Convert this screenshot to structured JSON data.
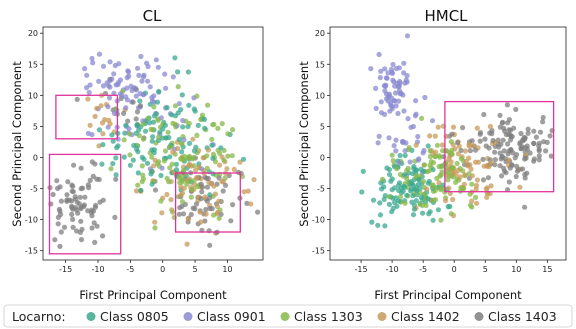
{
  "legend": {
    "label": "Locarno:",
    "entries": [
      {
        "name": "Class 0805",
        "color": "#3aa88f"
      },
      {
        "name": "Class 0901",
        "color": "#8a8ad0"
      },
      {
        "name": "Class 1303",
        "color": "#86b84a"
      },
      {
        "name": "Class 1402",
        "color": "#c79a5a"
      },
      {
        "name": "Class 1403",
        "color": "#7f7f7f"
      }
    ]
  },
  "highlight_color": "#e0349c",
  "chart_data": [
    {
      "type": "scatter",
      "title": "CL",
      "xlabel": "First Principal Component",
      "ylabel": "Second Principal Component",
      "xlim": [
        -18.5,
        15.5
      ],
      "ylim": [
        -16.5,
        21
      ],
      "xticks": [
        -15,
        -10,
        -5,
        0,
        5,
        10
      ],
      "yticks": [
        -15,
        -10,
        -5,
        0,
        5,
        10,
        15,
        20
      ],
      "grid": false,
      "series": [
        {
          "name": "Class 0805",
          "clusters": [
            {
              "cx": 0,
              "cy": 3,
              "sx": 4.5,
              "sy": 4.5,
              "n": 110
            }
          ]
        },
        {
          "name": "Class 0901",
          "clusters": [
            {
              "cx": -6,
              "cy": 12,
              "sx": 3.5,
              "sy": 3.5,
              "n": 70
            },
            {
              "cx": -1,
              "cy": 7,
              "sx": 4,
              "sy": 4,
              "n": 30
            }
          ]
        },
        {
          "name": "Class 1303",
          "clusters": [
            {
              "cx": 3,
              "cy": 0,
              "sx": 5,
              "sy": 4.5,
              "n": 120
            }
          ]
        },
        {
          "name": "Class 1402",
          "clusters": [
            {
              "cx": 5,
              "cy": -4,
              "sx": 4,
              "sy": 3.5,
              "n": 80
            },
            {
              "cx": -9,
              "cy": 6,
              "sx": 1.8,
              "sy": 2,
              "n": 15
            }
          ]
        },
        {
          "name": "Class 1403",
          "clusters": [
            {
              "cx": -13,
              "cy": -7,
              "sx": 2.8,
              "sy": 3.2,
              "n": 80
            },
            {
              "cx": 6,
              "cy": -7,
              "sx": 3,
              "sy": 2.8,
              "n": 60
            },
            {
              "cx": -5,
              "cy": 8,
              "sx": 3,
              "sy": 3,
              "n": 15
            }
          ]
        }
      ],
      "boxes": [
        {
          "x0": -16.5,
          "y0": 3,
          "x1": -7,
          "y1": 10
        },
        {
          "x0": -17.5,
          "y0": -15.5,
          "x1": -6.5,
          "y1": 0.5
        },
        {
          "x0": 2,
          "y0": -12,
          "x1": 12,
          "y1": -2.5
        }
      ]
    },
    {
      "type": "scatter",
      "title": "HMCL",
      "xlabel": "First Principal Component",
      "ylabel": "Second Principal Component",
      "xlim": [
        -20,
        18
      ],
      "ylim": [
        -16.5,
        21
      ],
      "xticks": [
        -15,
        -10,
        -5,
        0,
        5,
        10,
        15
      ],
      "yticks": [
        -15,
        -10,
        -5,
        0,
        5,
        10,
        15,
        20
      ],
      "grid": false,
      "series": [
        {
          "name": "Class 0805",
          "clusters": [
            {
              "cx": -7,
              "cy": -5,
              "sx": 3,
              "sy": 2.8,
              "n": 110
            }
          ]
        },
        {
          "name": "Class 0901",
          "clusters": [
            {
              "cx": -10,
              "cy": 11,
              "sx": 1.5,
              "sy": 2.5,
              "n": 60
            },
            {
              "cx": -7,
              "cy": 3,
              "sx": 2,
              "sy": 3,
              "n": 30
            }
          ]
        },
        {
          "name": "Class 1303",
          "clusters": [
            {
              "cx": -3,
              "cy": -3,
              "sx": 3.5,
              "sy": 3,
              "n": 110
            }
          ]
        },
        {
          "name": "Class 1402",
          "clusters": [
            {
              "cx": 2,
              "cy": -1,
              "sx": 4,
              "sy": 3,
              "n": 90
            }
          ]
        },
        {
          "name": "Class 1403",
          "clusters": [
            {
              "cx": 9,
              "cy": 1,
              "sx": 4,
              "sy": 2.8,
              "n": 140
            }
          ]
        }
      ],
      "boxes": [
        {
          "x0": -1.5,
          "y0": -5.5,
          "x1": 16,
          "y1": 9
        }
      ]
    }
  ]
}
